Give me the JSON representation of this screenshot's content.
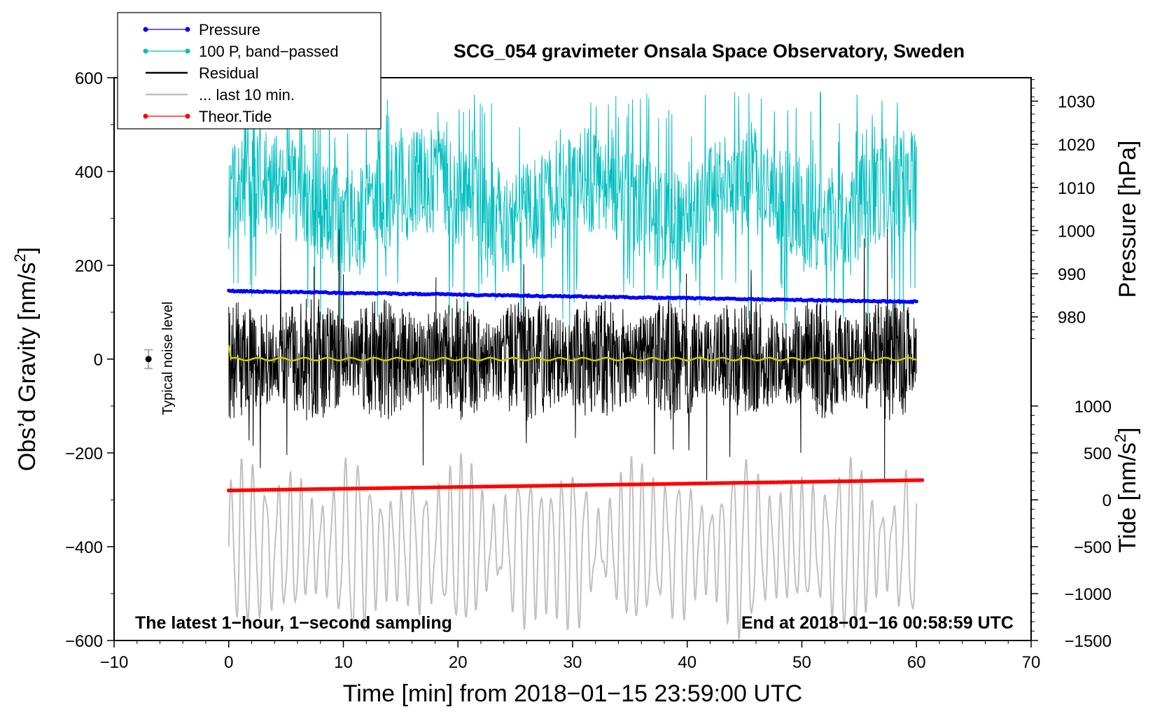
{
  "chart_data": {
    "type": "line",
    "title": "SCG_054 gravimeter Onsala Space Observatory, Sweden",
    "xlabel": "Time [min] from 2018−01−15 23:59:00 UTC",
    "ylabel": "Obs’d Gravity [nm/s",
    "ylabel_sup": "2",
    "ylabel_end": "]",
    "y2label": "Pressure [hPa]",
    "y3label": "Tide [nm/s",
    "y3label_sup": "2",
    "y3label_end": "]",
    "xlim": [
      -10,
      70
    ],
    "ylim": [
      -600,
      600
    ],
    "x_ticks": [
      -10,
      0,
      10,
      20,
      30,
      40,
      50,
      60,
      70
    ],
    "x_tick_labels": [
      "−10",
      "0",
      "10",
      "20",
      "30",
      "40",
      "50",
      "60",
      "70"
    ],
    "y_ticks": [
      -600,
      -400,
      -200,
      0,
      200,
      400,
      600
    ],
    "y_tick_labels": [
      "−600",
      "−400",
      "−200",
      "0",
      "200",
      "400",
      "600"
    ],
    "pressure_axis": {
      "ticks": [
        980,
        990,
        1000,
        1010,
        1020,
        1030
      ],
      "tick_labels": [
        "980",
        "990",
        "1000",
        "1010",
        "1020",
        "1030"
      ],
      "mapping": {
        "hpa": [
          980,
          1030
        ],
        "gravity": [
          90,
          550
        ]
      }
    },
    "tide_axis": {
      "ticks": [
        -1500,
        -1000,
        -500,
        0,
        500,
        1000
      ],
      "tick_labels": [
        "−1500",
        "−1000",
        "−500",
        "0",
        "500",
        "1000"
      ],
      "mapping": {
        "tide": [
          -1500,
          1000
        ],
        "gravity": [
          -600,
          -100
        ]
      }
    },
    "annotations": {
      "left_bottom": "The latest 1−hour, 1−second sampling",
      "right_bottom": "End at 2018−01−16 00:58:59 UTC",
      "noise_label": "Typical noise level"
    },
    "noise_marker": {
      "x": -7,
      "y": 0,
      "err": 20
    },
    "legend": [
      {
        "label": "Pressure",
        "color": "#0000ff",
        "marker": true
      },
      {
        "label": "100 P, band−passed",
        "color": "#00bfbf",
        "marker": true
      },
      {
        "label": "Residual",
        "color": "#000000",
        "marker": false
      },
      {
        "label": "... last 10 min.",
        "color": "#c0c0c0",
        "marker": false
      },
      {
        "label": "Theor.Tide",
        "color": "#ff0000",
        "marker": true
      }
    ],
    "series": [
      {
        "name": "Pressure",
        "color": "#0000ff",
        "unit": "hPa",
        "x_range": [
          0,
          60
        ],
        "start": 986.0,
        "end": 983.5,
        "noise": 0.3
      },
      {
        "name": "100 P, band−passed",
        "color": "#00bfbf",
        "unit": "nm/s2",
        "x_range": [
          0,
          60
        ],
        "baseline": 340,
        "spread": 160,
        "peak_max": 570,
        "trough_min": 70
      },
      {
        "name": "Residual",
        "color": "#000000",
        "unit": "nm/s2",
        "x_range": [
          0,
          60
        ],
        "amplitude": 120,
        "max": 280,
        "min": -265
      },
      {
        "name": "Smoothed residual",
        "color": "#cccc00",
        "unit": "nm/s2",
        "x_range": [
          0,
          60
        ],
        "value": 0,
        "start_value": 30
      },
      {
        "name": "... last 10 min.",
        "color": "#c0c0c0",
        "unit": "nm/s2",
        "x_range": [
          0,
          60
        ],
        "center": -400,
        "amplitude": 150,
        "min": -610,
        "max": -150
      },
      {
        "name": "Theor.Tide",
        "color": "#ff0000",
        "unit": "nm/s2 (tide axis)",
        "x_range": [
          0,
          60.5
        ],
        "start": 100,
        "end": 210
      }
    ]
  }
}
